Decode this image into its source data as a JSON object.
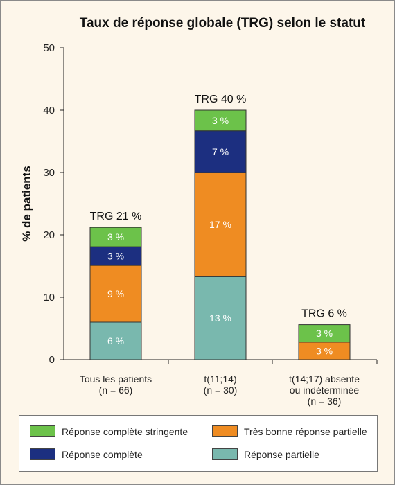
{
  "chart_data": {
    "type": "bar",
    "stacked": true,
    "title": "Taux de réponse globale (TRG) selon le statut",
    "ylabel": "% de patients",
    "ylim": [
      0,
      50
    ],
    "yticks": [
      0,
      10,
      20,
      30,
      40,
      50
    ],
    "categories": [
      [
        "Tous les patients",
        "(n = 66)"
      ],
      [
        "t(11;14)",
        "(n = 30)"
      ],
      [
        "t(14;17) absente",
        "ou indéterminée",
        "(n = 36)"
      ]
    ],
    "totals_labels": [
      "TRG 21 %",
      "TRG 40 %",
      "TRG 6 %"
    ],
    "series": [
      {
        "name": "Réponse partielle",
        "color": "#79b8ae",
        "values": [
          6,
          13.3,
          0
        ],
        "labels": [
          "6 %",
          "13 %",
          ""
        ]
      },
      {
        "name": "Très bonne réponse partielle",
        "color": "#ef8c22",
        "values": [
          9.1,
          16.7,
          2.8
        ],
        "labels": [
          "9 %",
          "17 %",
          "3 %"
        ]
      },
      {
        "name": "Réponse complète",
        "color": "#1c2f80",
        "values": [
          3,
          6.7,
          0
        ],
        "labels": [
          "3 %",
          "7 %",
          ""
        ]
      },
      {
        "name": "Réponse complète stringente",
        "color": "#6cc24a",
        "values": [
          3.1,
          3.3,
          2.8
        ],
        "labels": [
          "3 %",
          "3 %",
          "3 %"
        ]
      }
    ],
    "legend": [
      {
        "name": "Réponse complète stringente",
        "color": "#6cc24a"
      },
      {
        "name": "Très bonne réponse partielle",
        "color": "#ef8c22"
      },
      {
        "name": "Réponse complète",
        "color": "#1c2f80"
      },
      {
        "name": "Réponse partielle",
        "color": "#79b8ae"
      }
    ],
    "legend_position": "bottom",
    "grid": false
  }
}
